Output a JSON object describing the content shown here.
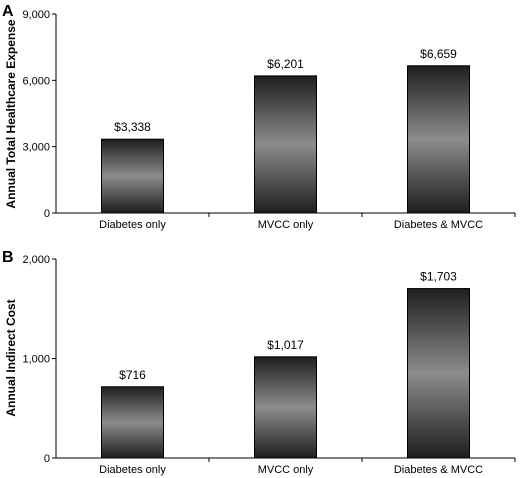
{
  "chart_data": [
    {
      "type": "bar",
      "panel": "A",
      "ylabel": "Annual Total Healthcare Expense",
      "categories": [
        "Diabetes only",
        "MVCC only",
        "Diabetes & MVCC"
      ],
      "values": [
        3338,
        6201,
        6659
      ],
      "value_labels": [
        "$3,338",
        "$6,201",
        "$6,659"
      ],
      "ylim": [
        0,
        9000
      ],
      "yticks": [
        0,
        3000,
        6000,
        9000
      ],
      "ytick_labels": [
        "0",
        "3,000",
        "6,000",
        "9,000"
      ],
      "grid": false,
      "bar_color": "#5a5a5a"
    },
    {
      "type": "bar",
      "panel": "B",
      "ylabel": "Annual Indirect Cost",
      "categories": [
        "Diabetes only",
        "MVCC only",
        "Diabetes & MVCC"
      ],
      "values": [
        716,
        1017,
        1703
      ],
      "value_labels": [
        "$716",
        "$1,017",
        "$1,703"
      ],
      "ylim": [
        0,
        2000
      ],
      "yticks": [
        0,
        1000,
        2000
      ],
      "ytick_labels": [
        "0",
        "1,000",
        "2,000"
      ],
      "grid": false,
      "bar_color": "#5a5a5a"
    }
  ]
}
